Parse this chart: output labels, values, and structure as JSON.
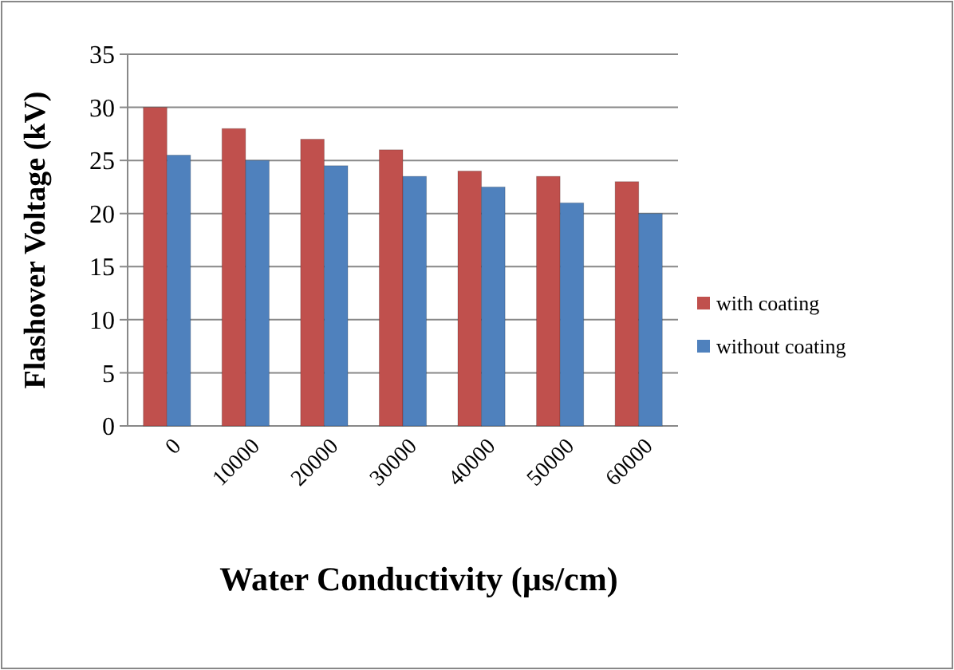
{
  "chart_data": {
    "type": "bar",
    "xlabel": "Water Conductivity (µs/cm)",
    "ylabel": "Flashover Voltage (kV)",
    "categories": [
      "0",
      "10000",
      "20000",
      "30000",
      "40000",
      "50000",
      "60000"
    ],
    "series": [
      {
        "name": "with coating",
        "color": "#c0504d",
        "values": [
          30,
          28,
          27,
          26,
          24,
          23.5,
          23
        ]
      },
      {
        "name": "without coating",
        "color": "#4f81bd",
        "values": [
          25.5,
          25,
          24.5,
          23.5,
          22.5,
          21,
          20
        ]
      }
    ],
    "ylim": [
      0,
      35
    ],
    "yticks": [
      0,
      5,
      10,
      15,
      20,
      25,
      30,
      35
    ],
    "grid": "y",
    "legend": "right"
  }
}
